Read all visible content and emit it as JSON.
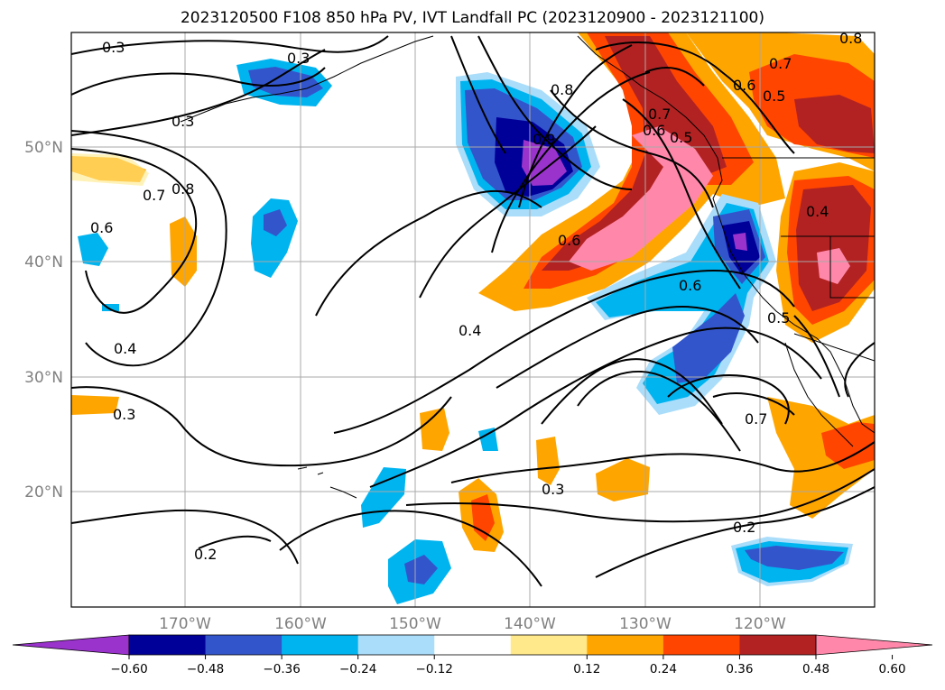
{
  "title": "2023120500 F108 850 hPa PV, IVT Landfall PC (2023120900 - 2023121100)",
  "lon_labels": [
    "170°W",
    "160°W",
    "150°W",
    "140°W",
    "130°W",
    "120°W"
  ],
  "lat_labels": [
    "50°N",
    "40°N",
    "30°N",
    "20°N"
  ],
  "contour_labels": [
    "0.3",
    "0.3",
    "0.3",
    "0.8",
    "0.8",
    "0.7",
    "0.6",
    "0.5",
    "0.7",
    "0.6",
    "0.5",
    "0.9",
    "0.7",
    "0.8",
    "0.6",
    "0.6",
    "0.4",
    "0.4",
    "0.5",
    "0.6",
    "0.4",
    "0.3",
    "0.3",
    "0.7",
    "0.2",
    "0.2"
  ],
  "colorbar": {
    "tick_labels": [
      "−0.60",
      "−0.48",
      "−0.36",
      "−0.24",
      "−0.12",
      "0.12",
      "0.24",
      "0.36",
      "0.48",
      "0.60"
    ],
    "colors": [
      "#9933cc",
      "#000099",
      "#3355cc",
      "#00b4f0",
      "#aaddfa",
      "#ffffff",
      "#ffe98a",
      "#ffa500",
      "#ff4500",
      "#b22222",
      "#ff88aa"
    ]
  },
  "colors": {
    "neg_060": "#9933cc",
    "neg_048": "#000099",
    "neg_036": "#3355cc",
    "neg_024": "#00b4f0",
    "neg_012": "#aaddfa",
    "pos_012": "#ffe98a",
    "pos_024": "#ffa500",
    "pos_036": "#ff4500",
    "pos_048": "#b22222",
    "pos_060": "#ff88aa"
  }
}
